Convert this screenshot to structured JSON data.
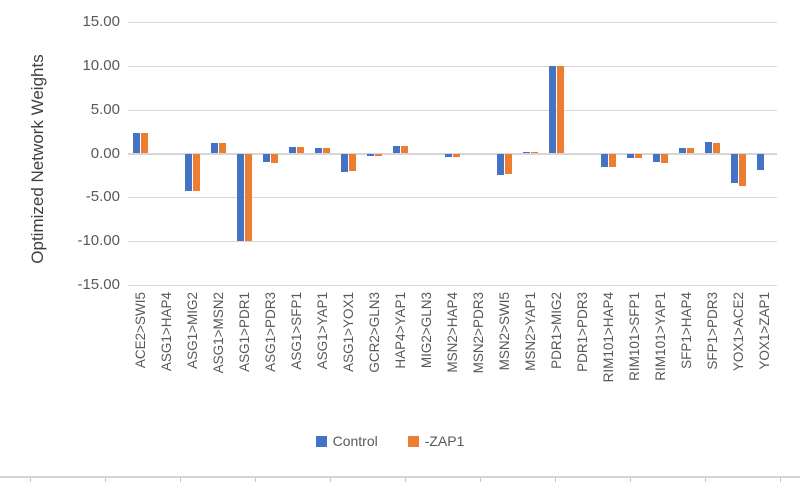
{
  "chart_data": {
    "type": "bar",
    "title": "",
    "xlabel": "",
    "ylabel": "Optimized Network Weights",
    "ylim": [
      -15,
      15
    ],
    "y_ticks": [
      {
        "value": 15,
        "label": "15.00"
      },
      {
        "value": 10,
        "label": "10.00"
      },
      {
        "value": 5,
        "label": "5.00"
      },
      {
        "value": 0,
        "label": "0.00"
      },
      {
        "value": -5,
        "label": "-5.00"
      },
      {
        "value": -10,
        "label": "-10.00"
      },
      {
        "value": -15,
        "label": "-15.00"
      }
    ],
    "grid": true,
    "legend_position": "bottom",
    "categories": [
      "ACE2>SWI5",
      "ASG1>HAP4",
      "ASG1>MIG2",
      "ASG1>MSN2",
      "ASG1>PDR1",
      "ASG1>PDR3",
      "ASG1>SFP1",
      "ASG1>YAP1",
      "ASG1>YOX1",
      "GCR2>GLN3",
      "HAP4>YAP1",
      "MIG2>GLN3",
      "MSN2>HAP4",
      "MSN2>PDR3",
      "MSN2>SWI5",
      "MSN2>YAP1",
      "PDR1>MIG2",
      "PDR1>PDR3",
      "RIM101>HAP4",
      "RIM101>SFP1",
      "RIM101>YAP1",
      "SFP1>HAP4",
      "SFP1>PDR3",
      "YOX1>ACE2",
      "YOX1>ZAP1"
    ],
    "series": [
      {
        "name": "Control",
        "color": "#4472C4",
        "values": [
          2.3,
          0,
          -4.3,
          1.2,
          -10.0,
          -1.0,
          0.7,
          0.6,
          -2.1,
          -0.3,
          0.85,
          0,
          -0.4,
          0,
          -2.4,
          0.2,
          10.0,
          0,
          -1.5,
          -0.5,
          -1.0,
          0.65,
          1.3,
          -3.4,
          -1.9
        ]
      },
      {
        "name": "-ZAP1",
        "color": "#ED7D31",
        "values": [
          2.3,
          0,
          -4.3,
          1.2,
          -10.0,
          -1.1,
          0.7,
          0.65,
          -2.0,
          -0.3,
          0.8,
          0,
          -0.4,
          0,
          -2.3,
          0.2,
          10.0,
          0,
          -1.5,
          -0.5,
          -1.1,
          0.6,
          1.25,
          -3.7,
          0
        ]
      }
    ]
  },
  "colors": {
    "control_bar": "#4472C4",
    "zap1_bar": "#ED7D31",
    "gridline": "#D9D9D9",
    "axis_text": "#595959",
    "title_text": "#404040",
    "bottom_edge": "#D4D4D4"
  }
}
